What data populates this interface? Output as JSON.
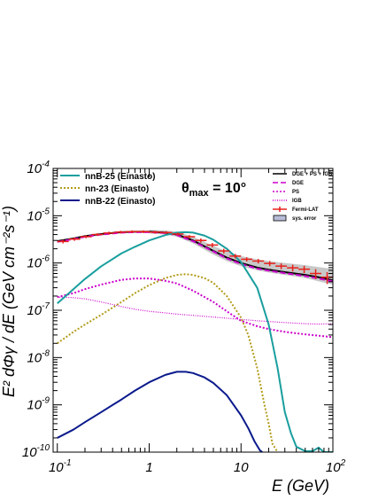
{
  "chart_data": {
    "type": "line",
    "xlabel": "E (GeV)",
    "ylabel": "E² dΦγ / dE (GeV cm⁻²s⁻¹)",
    "xscale": "log",
    "yscale": "log",
    "xlim": [
      0.09,
      100
    ],
    "ylim": [
      1e-10,
      0.0001
    ],
    "annotation": {
      "main": "θ",
      "sub": "max",
      "rest": " = 10°"
    },
    "x_ticks": [
      {
        "value": 0.1,
        "base": "10",
        "exp": "-1"
      },
      {
        "value": 1,
        "base": "1",
        "exp": ""
      },
      {
        "value": 10,
        "base": "10",
        "exp": ""
      },
      {
        "value": 100,
        "base": "10",
        "exp": "2"
      }
    ],
    "y_ticks": [
      {
        "value": 1e-10,
        "base": "10",
        "exp": "-10"
      },
      {
        "value": 1e-09,
        "base": "10",
        "exp": "-9"
      },
      {
        "value": 1e-08,
        "base": "10",
        "exp": "-8"
      },
      {
        "value": 1e-07,
        "base": "10",
        "exp": "-7"
      },
      {
        "value": 1e-06,
        "base": "10",
        "exp": "-6"
      },
      {
        "value": 1e-05,
        "base": "10",
        "exp": "-5"
      },
      {
        "value": 0.0001,
        "base": "10",
        "exp": "-4"
      }
    ],
    "legend_left": [
      {
        "name": "nnB-25 (Einasto)",
        "color": "#1a9e9e",
        "dash": "solid"
      },
      {
        "name": "nn-23 (Einasto)",
        "color": "#b39b1a",
        "dash": "dot"
      },
      {
        "name": "nnB-22 (Einasto)",
        "color": "#0a1a8c",
        "dash": "solid"
      }
    ],
    "legend_right": [
      {
        "name": "DGE + PS + IGB",
        "color": "#000000",
        "kind": "line"
      },
      {
        "name": "DGE",
        "color": "#cc00cc",
        "kind": "dash"
      },
      {
        "name": "PS",
        "color": "#cc00cc",
        "kind": "dot"
      },
      {
        "name": "IGB",
        "color": "#cc00cc",
        "kind": "finedot"
      },
      {
        "name": "Fermi-LAT",
        "color": "#e8201a",
        "kind": "errorbar"
      },
      {
        "name": "sys. error",
        "color": "#b8bcd8",
        "kind": "box"
      }
    ],
    "series": [
      {
        "name": "DGE + PS + IGB",
        "color": "#000000",
        "style": "solid",
        "x": [
          0.1,
          0.15,
          0.2,
          0.3,
          0.5,
          0.7,
          1.0,
          1.5,
          2.0,
          3.0,
          5.0,
          7.0,
          10,
          15,
          20,
          30,
          50,
          70,
          100
        ],
        "y": [
          2.9e-06,
          3.3e-06,
          3.7e-06,
          4.1e-06,
          4.5e-06,
          4.6e-06,
          4.6e-06,
          4.4e-06,
          4e-06,
          3e-06,
          1.8e-06,
          1.3e-06,
          1e-06,
          8e-07,
          7.2e-07,
          6.4e-07,
          5.6e-07,
          5e-07,
          4.3e-07
        ]
      },
      {
        "name": "DGE",
        "color": "#cc00cc",
        "style": "dash",
        "x": [
          0.1,
          0.15,
          0.2,
          0.3,
          0.5,
          0.7,
          1.0,
          1.5,
          2.0,
          3.0,
          5.0,
          7.0,
          10,
          15,
          20,
          30,
          50,
          70,
          100
        ],
        "y": [
          2.8e-06,
          3.2e-06,
          3.6e-06,
          4e-06,
          4.4e-06,
          4.5e-06,
          4.5e-06,
          4.3e-06,
          3.9e-06,
          2.9e-06,
          1.75e-06,
          1.25e-06,
          9.5e-07,
          7.6e-07,
          6.9e-07,
          6.1e-07,
          5.3e-07,
          4.7e-07,
          4.1e-07
        ]
      },
      {
        "name": "PS",
        "color": "#cc00cc",
        "style": "dot",
        "x": [
          0.1,
          0.15,
          0.2,
          0.3,
          0.5,
          0.7,
          1.0,
          1.5,
          2.0,
          3.0,
          5.0,
          7.0,
          10,
          15,
          20,
          30,
          50,
          70,
          100
        ],
        "y": [
          1.9e-07,
          2.3e-07,
          2.8e-07,
          3.5e-07,
          4.4e-07,
          4.7e-07,
          4.7e-07,
          4.2e-07,
          3.7e-07,
          2.6e-07,
          1.5e-07,
          9.5e-08,
          6e-08,
          4.6e-08,
          4e-08,
          3.5e-08,
          3.1e-08,
          2.9e-08,
          2.7e-08
        ]
      },
      {
        "name": "IGB",
        "color": "#cc00cc",
        "style": "finedot",
        "x": [
          0.1,
          0.15,
          0.2,
          0.3,
          0.5,
          0.7,
          1.0,
          1.5,
          2.0,
          3.0,
          5.0,
          7.0,
          10,
          15,
          20,
          30,
          50,
          70,
          100
        ],
        "y": [
          1.9e-07,
          1.85e-07,
          1.75e-07,
          1.5e-07,
          1.2e-07,
          1.05e-07,
          9.5e-08,
          8.8e-08,
          8.3e-08,
          7.8e-08,
          7.2e-08,
          6.8e-08,
          6.4e-08,
          6e-08,
          5.8e-08,
          5.5e-08,
          5.2e-08,
          5.1e-08,
          5.2e-08
        ]
      },
      {
        "name": "nnB-25 (Einasto)",
        "color": "#1a9e9e",
        "style": "solid",
        "x": [
          0.1,
          0.15,
          0.2,
          0.3,
          0.5,
          0.7,
          1.0,
          1.5,
          2.0,
          2.5,
          3.0,
          4.0,
          5.0,
          7.0,
          10,
          15,
          20,
          25,
          30,
          35,
          40,
          50,
          60,
          70,
          80,
          100
        ],
        "y": [
          1.4e-07,
          2.8e-07,
          4.6e-07,
          8.5e-07,
          1.6e-06,
          2.2e-06,
          3e-06,
          3.9e-06,
          4.4e-06,
          4.5e-06,
          4.4e-06,
          3.8e-06,
          3.1e-06,
          2e-06,
          1.05e-06,
          3e-07,
          5e-08,
          6e-09,
          7e-10,
          2.5e-10,
          1.3e-10,
          1.05e-10,
          1.05e-10,
          1.25e-10,
          1e-10,
          1e-10
        ]
      },
      {
        "name": "nn-23 (Einasto)",
        "color": "#b39b1a",
        "style": "dot",
        "x": [
          0.1,
          0.15,
          0.2,
          0.3,
          0.5,
          0.7,
          1.0,
          1.5,
          2.0,
          2.5,
          3.0,
          4.0,
          5.0,
          7.0,
          10,
          12,
          15,
          18,
          20,
          22,
          25
        ],
        "y": [
          2e-08,
          3.5e-08,
          5e-08,
          8e-08,
          1.5e-07,
          2.3e-07,
          3.4e-07,
          4.8e-07,
          5.6e-07,
          5.8e-07,
          5.6e-07,
          4.8e-07,
          3.8e-07,
          2e-07,
          7e-08,
          3e-08,
          6e-09,
          1e-09,
          4e-10,
          1.5e-10,
          1e-10
        ]
      },
      {
        "name": "nnB-22 (Einasto)",
        "color": "#0a1a8c",
        "style": "solid",
        "x": [
          0.1,
          0.15,
          0.2,
          0.3,
          0.5,
          0.7,
          1.0,
          1.5,
          2.0,
          2.5,
          3.0,
          4.0,
          5.0,
          7.0,
          10,
          12,
          14,
          16,
          17
        ],
        "y": [
          2e-10,
          3e-10,
          4.3e-10,
          7e-10,
          1.3e-09,
          2e-09,
          3e-09,
          4.3e-09,
          5e-09,
          5e-09,
          4.7e-09,
          3.8e-09,
          2.9e-09,
          1.6e-09,
          6e-10,
          3.2e-10,
          1.7e-10,
          1.1e-10,
          1e-10
        ]
      }
    ],
    "fermi_lat": {
      "name": "Fermi-LAT",
      "color": "#e8201a",
      "points": [
        {
          "xlo": 0.1,
          "xhi": 0.133,
          "y": 2.85e-06,
          "err": 2.5e-07
        },
        {
          "xlo": 0.133,
          "xhi": 0.178,
          "y": 3.2e-06,
          "err": 2.5e-07
        },
        {
          "xlo": 0.178,
          "xhi": 0.237,
          "y": 3.6e-06,
          "err": 2.5e-07
        },
        {
          "xlo": 0.237,
          "xhi": 0.316,
          "y": 4e-06,
          "err": 2.5e-07
        },
        {
          "xlo": 0.316,
          "xhi": 0.422,
          "y": 4.3e-06,
          "err": 3e-07
        },
        {
          "xlo": 0.422,
          "xhi": 0.562,
          "y": 4.5e-06,
          "err": 3e-07
        },
        {
          "xlo": 0.562,
          "xhi": 0.75,
          "y": 4.6e-06,
          "err": 3e-07
        },
        {
          "xlo": 0.75,
          "xhi": 1.0,
          "y": 4.6e-06,
          "err": 3e-07
        },
        {
          "xlo": 1.0,
          "xhi": 1.33,
          "y": 4.5e-06,
          "err": 3e-07
        },
        {
          "xlo": 1.33,
          "xhi": 1.78,
          "y": 4.4e-06,
          "err": 3e-07
        },
        {
          "xlo": 1.78,
          "xhi": 2.37,
          "y": 4.1e-06,
          "err": 3e-07
        },
        {
          "xlo": 2.37,
          "xhi": 3.16,
          "y": 3.6e-06,
          "err": 3e-07
        },
        {
          "xlo": 3.16,
          "xhi": 4.22,
          "y": 3e-06,
          "err": 3e-07
        },
        {
          "xlo": 4.22,
          "xhi": 5.62,
          "y": 2.4e-06,
          "err": 2.5e-07
        },
        {
          "xlo": 5.62,
          "xhi": 7.5,
          "y": 1.8e-06,
          "err": 2e-07
        },
        {
          "xlo": 7.5,
          "xhi": 10,
          "y": 1.4e-06,
          "err": 1.5e-07
        },
        {
          "xlo": 10,
          "xhi": 13.3,
          "y": 1.2e-06,
          "err": 1.2e-07
        },
        {
          "xlo": 13.3,
          "xhi": 17.8,
          "y": 1.1e-06,
          "err": 1.2e-07
        },
        {
          "xlo": 17.8,
          "xhi": 23.7,
          "y": 9.8e-07,
          "err": 1.2e-07
        },
        {
          "xlo": 23.7,
          "xhi": 31.6,
          "y": 8.6e-07,
          "err": 1.2e-07
        },
        {
          "xlo": 31.6,
          "xhi": 42.2,
          "y": 7.9e-07,
          "err": 1.3e-07
        },
        {
          "xlo": 42.2,
          "xhi": 56.2,
          "y": 7.4e-07,
          "err": 1.3e-07
        },
        {
          "xlo": 56.2,
          "xhi": 75,
          "y": 6e-07,
          "err": 1.4e-07
        },
        {
          "xlo": 75,
          "xhi": 100,
          "y": 5e-07,
          "err": 1.4e-07
        }
      ]
    },
    "sys_error_band": {
      "name": "sys. error",
      "color": "#c8c8c8",
      "x": [
        1.0,
        1.5,
        2.0,
        3.0,
        5.0,
        7.0,
        10,
        15,
        20,
        30,
        50,
        70,
        100
      ],
      "ylo": [
        4.2e-06,
        4e-06,
        3.6e-06,
        2.6e-06,
        1.5e-06,
        1.1e-06,
        8.5e-07,
        7e-07,
        6.3e-07,
        5.6e-07,
        4.8e-07,
        4.1e-07,
        3.5e-07
      ],
      "yhi": [
        5e-06,
        4.9e-06,
        4.6e-06,
        3.6e-06,
        2.3e-06,
        1.75e-06,
        1.4e-06,
        1.2e-06,
        1.1e-06,
        1e-06,
        9e-07,
        8.2e-07,
        7.5e-07
      ]
    }
  }
}
